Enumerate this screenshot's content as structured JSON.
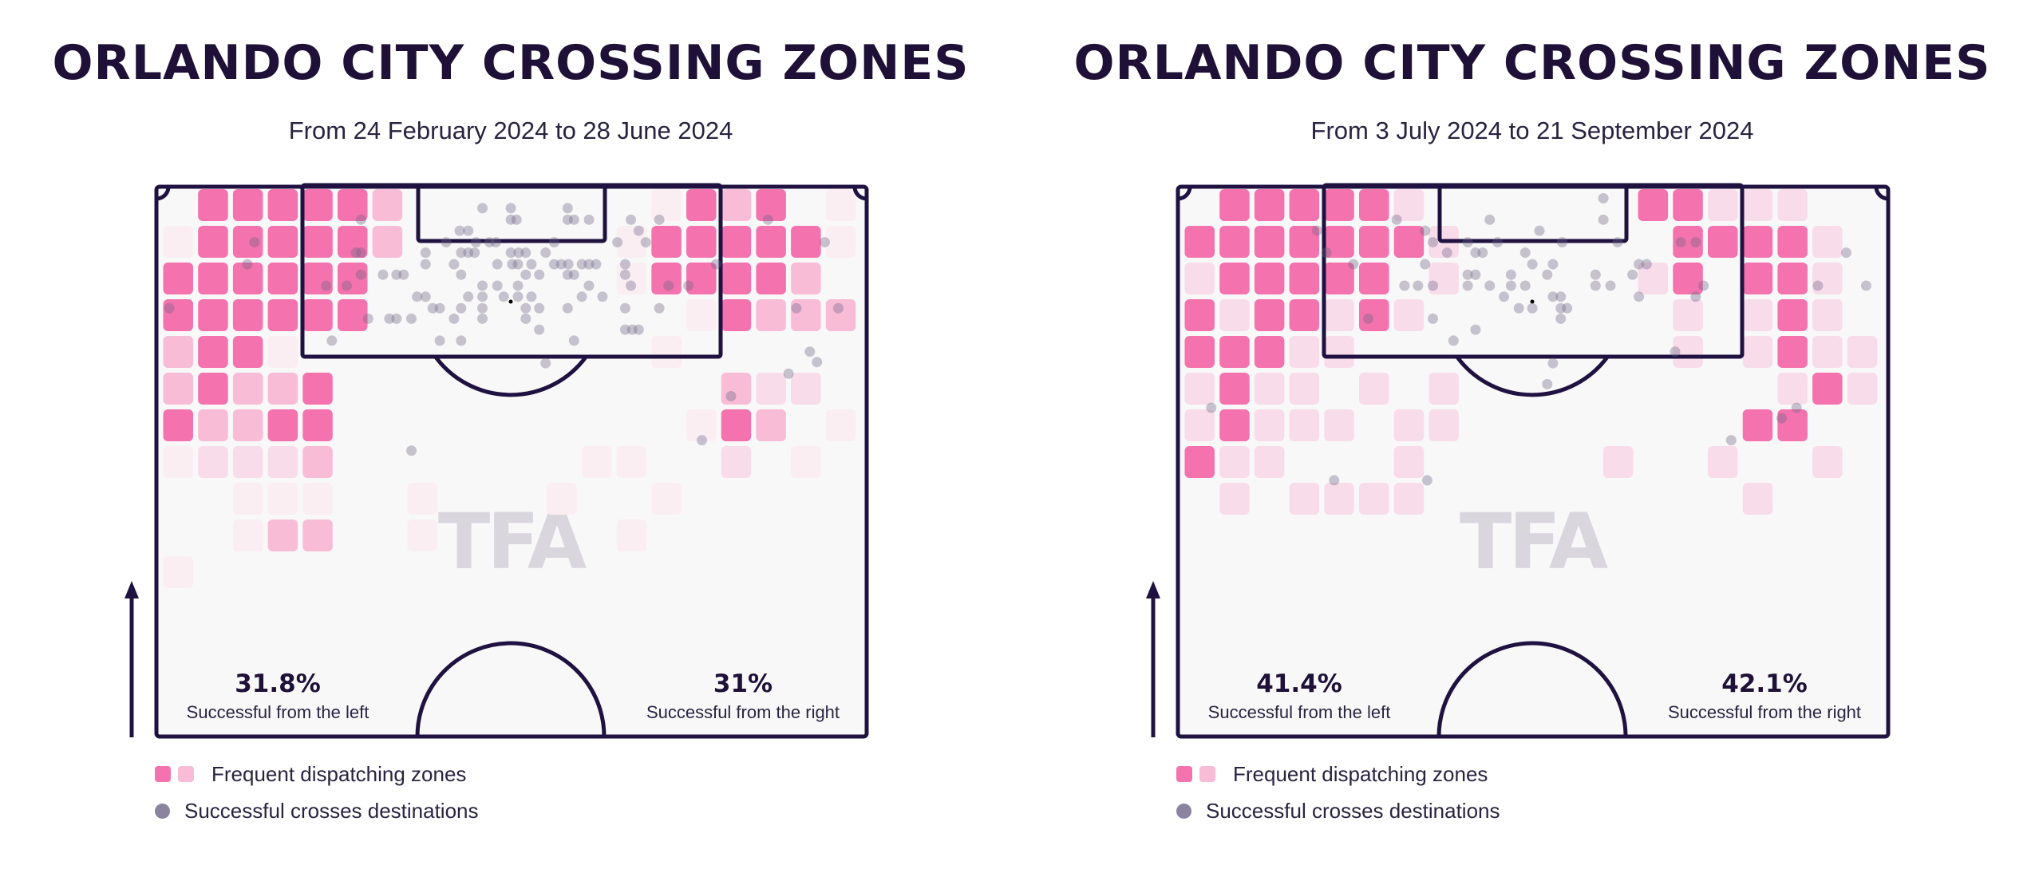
{
  "legend": {
    "zones_label": "Frequent dispatching zones",
    "dots_label": "Successful crosses destinations"
  },
  "watermark": "TFA",
  "colors": {
    "line": "#1f1241",
    "pitch": "#f8f8f8",
    "zone_levels": [
      "transparent",
      "#fbeef3",
      "#f9dce9",
      "#f8bcd7",
      "#f472ad"
    ],
    "dot": "#6b6385",
    "watermark": "#d9d6de"
  },
  "chart_data": [
    {
      "type": "heatmap",
      "title": "ORLANDO CITY CROSSING ZONES",
      "subtitle": "From 24 February 2024 to 28 June 2024",
      "left_pct": "31.8%",
      "left_label": "Successful from the left",
      "right_pct": "31%",
      "right_label": "Successful from the right",
      "zones": [
        [
          0,
          4,
          4,
          4,
          4,
          4,
          3,
          0,
          0,
          0,
          0,
          0,
          0,
          0,
          1,
          4,
          3,
          4,
          0,
          1
        ],
        [
          1,
          4,
          4,
          4,
          4,
          4,
          3,
          0,
          0,
          0,
          0,
          0,
          0,
          1,
          4,
          4,
          4,
          4,
          4,
          1
        ],
        [
          4,
          4,
          4,
          4,
          4,
          4,
          0,
          0,
          0,
          0,
          0,
          0,
          0,
          1,
          4,
          4,
          4,
          4,
          3,
          0
        ],
        [
          4,
          4,
          4,
          4,
          4,
          4,
          0,
          0,
          0,
          0,
          0,
          0,
          0,
          0,
          0,
          1,
          4,
          3,
          3,
          3
        ],
        [
          3,
          4,
          4,
          1,
          0,
          0,
          0,
          0,
          0,
          0,
          0,
          0,
          0,
          0,
          1,
          0,
          0,
          0,
          0,
          0
        ],
        [
          3,
          4,
          3,
          3,
          4,
          0,
          0,
          0,
          0,
          0,
          0,
          0,
          0,
          0,
          0,
          0,
          3,
          2,
          2,
          0
        ],
        [
          4,
          3,
          3,
          4,
          4,
          0,
          0,
          0,
          0,
          0,
          0,
          0,
          0,
          0,
          0,
          1,
          4,
          3,
          0,
          1
        ],
        [
          1,
          2,
          2,
          2,
          3,
          0,
          0,
          0,
          0,
          0,
          0,
          0,
          1,
          1,
          0,
          0,
          2,
          0,
          1,
          0
        ],
        [
          0,
          0,
          1,
          1,
          1,
          0,
          0,
          1,
          0,
          0,
          0,
          1,
          0,
          0,
          1,
          0,
          0,
          0,
          0,
          0
        ],
        [
          0,
          0,
          1,
          3,
          3,
          0,
          0,
          1,
          0,
          0,
          0,
          0,
          0,
          1,
          0,
          0,
          0,
          0,
          0,
          0
        ],
        [
          1,
          0,
          0,
          0,
          0,
          0,
          0,
          0,
          0,
          0,
          0,
          0,
          0,
          0,
          0,
          0,
          0,
          0,
          0,
          0
        ]
      ],
      "dots": [
        [
          45.9,
          3.9
        ],
        [
          49.9,
          3.9
        ],
        [
          57.9,
          3.9
        ],
        [
          49.9,
          6
        ],
        [
          50.7,
          6
        ],
        [
          57.9,
          6
        ],
        [
          58.8,
          6
        ],
        [
          60.9,
          6
        ],
        [
          28.8,
          6
        ],
        [
          66.8,
          6
        ],
        [
          70.8,
          6
        ],
        [
          86.1,
          6
        ],
        [
          42.7,
          8
        ],
        [
          43.9,
          8
        ],
        [
          67.9,
          8
        ],
        [
          13.8,
          10.1
        ],
        [
          40.8,
          10.1
        ],
        [
          45,
          10.1
        ],
        [
          46.9,
          10.1
        ],
        [
          47.8,
          10.1
        ],
        [
          56,
          10.1
        ],
        [
          64.9,
          10.1
        ],
        [
          68.9,
          10.1
        ],
        [
          94.1,
          10.1
        ],
        [
          28.1,
          12
        ],
        [
          28.8,
          12
        ],
        [
          37.9,
          12
        ],
        [
          42.9,
          12
        ],
        [
          43.9,
          12
        ],
        [
          44.8,
          12
        ],
        [
          49.9,
          12
        ],
        [
          51,
          12
        ],
        [
          52,
          12
        ],
        [
          54.8,
          12
        ],
        [
          12.8,
          14.1
        ],
        [
          37.9,
          14.1
        ],
        [
          41.9,
          14.1
        ],
        [
          48,
          14.1
        ],
        [
          50.1,
          14.1
        ],
        [
          50.9,
          14.1
        ],
        [
          52.8,
          14.1
        ],
        [
          56,
          14.1
        ],
        [
          57,
          14.1
        ],
        [
          58,
          14.1
        ],
        [
          59.9,
          14.1
        ],
        [
          60.9,
          14.1
        ],
        [
          61.9,
          14.1
        ],
        [
          66,
          14.1
        ],
        [
          78.8,
          14.1
        ],
        [
          31.9,
          16
        ],
        [
          33.8,
          16
        ],
        [
          34.8,
          16
        ],
        [
          28.8,
          16
        ],
        [
          42.9,
          16
        ],
        [
          52,
          16
        ],
        [
          53.9,
          16
        ],
        [
          57.9,
          16
        ],
        [
          58.8,
          16
        ],
        [
          66,
          16
        ],
        [
          23.9,
          18
        ],
        [
          26.8,
          18
        ],
        [
          45.9,
          18
        ],
        [
          48,
          18
        ],
        [
          50.9,
          18
        ],
        [
          60.9,
          18
        ],
        [
          66.8,
          18
        ],
        [
          72.1,
          18
        ],
        [
          74.9,
          18
        ],
        [
          36.7,
          20
        ],
        [
          37.9,
          20
        ],
        [
          43.9,
          20
        ],
        [
          45.9,
          20
        ],
        [
          48.9,
          20
        ],
        [
          50.9,
          20
        ],
        [
          52.8,
          20
        ],
        [
          59.9,
          20
        ],
        [
          62.8,
          20
        ],
        [
          1.8,
          22.1
        ],
        [
          38.9,
          22.1
        ],
        [
          39.9,
          22.1
        ],
        [
          42.9,
          22.1
        ],
        [
          45.9,
          22.1
        ],
        [
          52,
          22.1
        ],
        [
          53.9,
          22.1
        ],
        [
          57.9,
          22.1
        ],
        [
          66,
          22.1
        ],
        [
          70.8,
          22.1
        ],
        [
          90.1,
          22.1
        ],
        [
          96,
          22.1
        ],
        [
          29.8,
          24
        ],
        [
          32.8,
          24
        ],
        [
          33.8,
          24
        ],
        [
          35.9,
          24
        ],
        [
          41.9,
          24
        ],
        [
          45.9,
          24
        ],
        [
          52,
          24
        ],
        [
          53.9,
          26
        ],
        [
          66,
          26
        ],
        [
          67,
          26
        ],
        [
          67.9,
          26
        ],
        [
          24.7,
          28
        ],
        [
          39.9,
          28
        ],
        [
          42.9,
          28
        ],
        [
          58.8,
          28
        ],
        [
          92,
          30
        ],
        [
          93,
          31.9
        ],
        [
          54.8,
          32.1
        ],
        [
          89,
          34
        ],
        [
          80.9,
          38.1
        ],
        [
          76.8,
          46.1
        ],
        [
          35.9,
          48
        ]
      ]
    },
    {
      "type": "heatmap",
      "title": "ORLANDO CITY CROSSING ZONES",
      "subtitle": "From 3 July 2024 to 21 September 2024",
      "left_pct": "41.4%",
      "left_label": "Successful from the left",
      "right_pct": "42.1%",
      "right_label": "Successful from the right",
      "zones": [
        [
          0,
          4,
          4,
          4,
          4,
          4,
          2,
          0,
          0,
          0,
          0,
          0,
          0,
          4,
          4,
          2,
          2,
          2,
          0,
          0
        ],
        [
          4,
          4,
          4,
          4,
          4,
          4,
          4,
          2,
          0,
          0,
          0,
          0,
          0,
          0,
          4,
          4,
          4,
          4,
          2,
          0
        ],
        [
          2,
          4,
          4,
          4,
          4,
          4,
          0,
          2,
          0,
          0,
          0,
          0,
          0,
          2,
          4,
          0,
          4,
          4,
          2,
          0
        ],
        [
          4,
          2,
          4,
          4,
          2,
          4,
          2,
          0,
          0,
          0,
          0,
          0,
          0,
          0,
          2,
          0,
          2,
          4,
          2,
          0
        ],
        [
          4,
          4,
          4,
          2,
          2,
          0,
          0,
          0,
          0,
          0,
          0,
          0,
          0,
          0,
          2,
          0,
          2,
          4,
          2,
          2
        ],
        [
          2,
          4,
          2,
          2,
          0,
          2,
          0,
          2,
          0,
          0,
          0,
          0,
          0,
          0,
          0,
          0,
          0,
          2,
          4,
          2
        ],
        [
          2,
          4,
          2,
          2,
          2,
          0,
          2,
          2,
          0,
          0,
          0,
          0,
          0,
          0,
          0,
          0,
          4,
          4,
          0,
          0
        ],
        [
          4,
          2,
          2,
          0,
          0,
          0,
          2,
          0,
          0,
          0,
          0,
          0,
          2,
          0,
          0,
          2,
          0,
          0,
          2,
          0
        ],
        [
          0,
          2,
          0,
          2,
          2,
          2,
          2,
          0,
          0,
          0,
          0,
          0,
          0,
          0,
          0,
          0,
          2,
          0,
          0,
          0
        ]
      ],
      "dots": [
        [
          59.9,
          2.1
        ],
        [
          43.9,
          6
        ],
        [
          59.9,
          6
        ],
        [
          30.8,
          6
        ],
        [
          50.9,
          8
        ],
        [
          34.8,
          8
        ],
        [
          19.6,
          8
        ],
        [
          35.9,
          10.1
        ],
        [
          40.8,
          10.1
        ],
        [
          45,
          10.1
        ],
        [
          54.1,
          10.1
        ],
        [
          61.9,
          10.1
        ],
        [
          70.8,
          10.1
        ],
        [
          72.9,
          10.1
        ],
        [
          20.9,
          12
        ],
        [
          37.9,
          12
        ],
        [
          41.9,
          12
        ],
        [
          42.9,
          12
        ],
        [
          48.9,
          12
        ],
        [
          94.1,
          12
        ],
        [
          24.7,
          14.1
        ],
        [
          34.8,
          14.1
        ],
        [
          49.9,
          14.1
        ],
        [
          52.8,
          14.1
        ],
        [
          64.9,
          14.1
        ],
        [
          66,
          14.1
        ],
        [
          40.8,
          16
        ],
        [
          41.9,
          16
        ],
        [
          46.9,
          16
        ],
        [
          52,
          16
        ],
        [
          58.8,
          16
        ],
        [
          64,
          16
        ],
        [
          31.9,
          18
        ],
        [
          33.8,
          18
        ],
        [
          35.9,
          18
        ],
        [
          40.8,
          18
        ],
        [
          43.9,
          18
        ],
        [
          46.9,
          18
        ],
        [
          48.9,
          18
        ],
        [
          58.8,
          18
        ],
        [
          60.9,
          18
        ],
        [
          74,
          18
        ],
        [
          90.1,
          18
        ],
        [
          96.9,
          18
        ],
        [
          45.9,
          20
        ],
        [
          52.8,
          20
        ],
        [
          53.9,
          20
        ],
        [
          64.9,
          20
        ],
        [
          72.9,
          20
        ],
        [
          48,
          22.1
        ],
        [
          49.9,
          22.1
        ],
        [
          53.9,
          22.1
        ],
        [
          54.8,
          22.1
        ],
        [
          26.8,
          24
        ],
        [
          35.9,
          24
        ],
        [
          53.9,
          24
        ],
        [
          41.9,
          26
        ],
        [
          38.8,
          28
        ],
        [
          70,
          30
        ],
        [
          52.8,
          32.1
        ],
        [
          52,
          35.9
        ],
        [
          4.7,
          40.2
        ],
        [
          87.1,
          40.2
        ],
        [
          85,
          42.1
        ],
        [
          77.9,
          46.1
        ],
        [
          22,
          53.4
        ],
        [
          35.1,
          53.4
        ]
      ]
    }
  ]
}
